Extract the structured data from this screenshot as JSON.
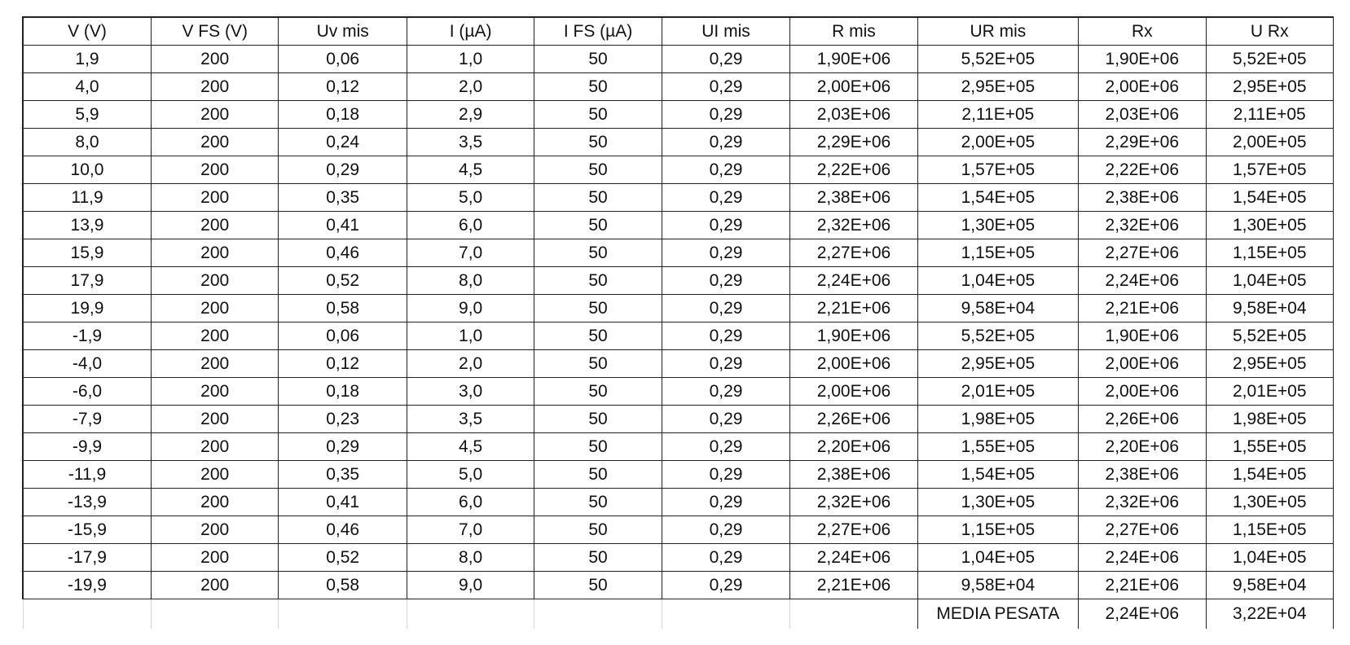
{
  "table": {
    "headers": [
      "V (V)",
      "V FS (V)",
      "Uv mis",
      "I (µA)",
      "I FS (µA)",
      "UI mis",
      "R mis",
      "UR mis",
      "Rx",
      "U Rx"
    ],
    "rows": [
      [
        "1,9",
        "200",
        "0,06",
        "1,0",
        "50",
        "0,29",
        "1,90E+06",
        "5,52E+05",
        "1,90E+06",
        "5,52E+05"
      ],
      [
        "4,0",
        "200",
        "0,12",
        "2,0",
        "50",
        "0,29",
        "2,00E+06",
        "2,95E+05",
        "2,00E+06",
        "2,95E+05"
      ],
      [
        "5,9",
        "200",
        "0,18",
        "2,9",
        "50",
        "0,29",
        "2,03E+06",
        "2,11E+05",
        "2,03E+06",
        "2,11E+05"
      ],
      [
        "8,0",
        "200",
        "0,24",
        "3,5",
        "50",
        "0,29",
        "2,29E+06",
        "2,00E+05",
        "2,29E+06",
        "2,00E+05"
      ],
      [
        "10,0",
        "200",
        "0,29",
        "4,5",
        "50",
        "0,29",
        "2,22E+06",
        "1,57E+05",
        "2,22E+06",
        "1,57E+05"
      ],
      [
        "11,9",
        "200",
        "0,35",
        "5,0",
        "50",
        "0,29",
        "2,38E+06",
        "1,54E+05",
        "2,38E+06",
        "1,54E+05"
      ],
      [
        "13,9",
        "200",
        "0,41",
        "6,0",
        "50",
        "0,29",
        "2,32E+06",
        "1,30E+05",
        "2,32E+06",
        "1,30E+05"
      ],
      [
        "15,9",
        "200",
        "0,46",
        "7,0",
        "50",
        "0,29",
        "2,27E+06",
        "1,15E+05",
        "2,27E+06",
        "1,15E+05"
      ],
      [
        "17,9",
        "200",
        "0,52",
        "8,0",
        "50",
        "0,29",
        "2,24E+06",
        "1,04E+05",
        "2,24E+06",
        "1,04E+05"
      ],
      [
        "19,9",
        "200",
        "0,58",
        "9,0",
        "50",
        "0,29",
        "2,21E+06",
        "9,58E+04",
        "2,21E+06",
        "9,58E+04"
      ],
      [
        "-1,9",
        "200",
        "0,06",
        "1,0",
        "50",
        "0,29",
        "1,90E+06",
        "5,52E+05",
        "1,90E+06",
        "5,52E+05"
      ],
      [
        "-4,0",
        "200",
        "0,12",
        "2,0",
        "50",
        "0,29",
        "2,00E+06",
        "2,95E+05",
        "2,00E+06",
        "2,95E+05"
      ],
      [
        "-6,0",
        "200",
        "0,18",
        "3,0",
        "50",
        "0,29",
        "2,00E+06",
        "2,01E+05",
        "2,00E+06",
        "2,01E+05"
      ],
      [
        "-7,9",
        "200",
        "0,23",
        "3,5",
        "50",
        "0,29",
        "2,26E+06",
        "1,98E+05",
        "2,26E+06",
        "1,98E+05"
      ],
      [
        "-9,9",
        "200",
        "0,29",
        "4,5",
        "50",
        "0,29",
        "2,20E+06",
        "1,55E+05",
        "2,20E+06",
        "1,55E+05"
      ],
      [
        "-11,9",
        "200",
        "0,35",
        "5,0",
        "50",
        "0,29",
        "2,38E+06",
        "1,54E+05",
        "2,38E+06",
        "1,54E+05"
      ],
      [
        "-13,9",
        "200",
        "0,41",
        "6,0",
        "50",
        "0,29",
        "2,32E+06",
        "1,30E+05",
        "2,32E+06",
        "1,30E+05"
      ],
      [
        "-15,9",
        "200",
        "0,46",
        "7,0",
        "50",
        "0,29",
        "2,27E+06",
        "1,15E+05",
        "2,27E+06",
        "1,15E+05"
      ],
      [
        "-17,9",
        "200",
        "0,52",
        "8,0",
        "50",
        "0,29",
        "2,24E+06",
        "1,04E+05",
        "2,24E+06",
        "1,04E+05"
      ],
      [
        "-19,9",
        "200",
        "0,58",
        "9,0",
        "50",
        "0,29",
        "2,21E+06",
        "9,58E+04",
        "2,21E+06",
        "9,58E+04"
      ]
    ],
    "footer": {
      "label": "MEDIA PESATA",
      "rx": "2,24E+06",
      "u_rx": "3,22E+04"
    }
  }
}
